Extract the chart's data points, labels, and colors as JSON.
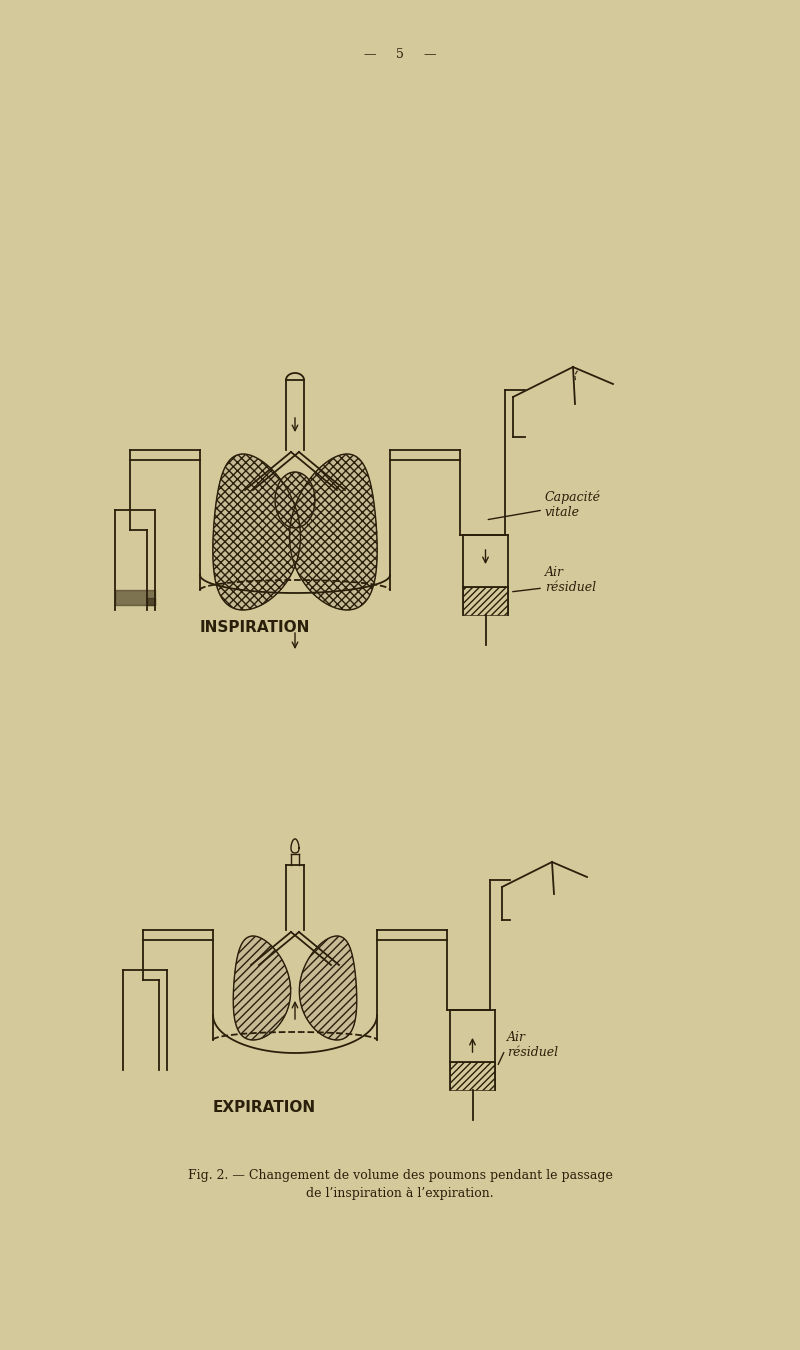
{
  "bg_color": "#d4c99a",
  "page_num": "5",
  "ink_color": "#2a1f0a",
  "title_inspiration": "INSPIRATION",
  "title_expiration": "EXPIRATION",
  "label_capacite": "Capacité\nvitale",
  "label_air_residuel_top": "Air\nrésiduel",
  "label_air_residuel_bot": "Air\nrésiduel",
  "caption_line1": "Fig. 2. — Changement de volume des poumons pendant le passage",
  "caption_line2": "de l’inspiration à l’expiration.",
  "font_size_label": 9,
  "font_size_title": 11,
  "font_size_caption": 9,
  "font_size_page": 9
}
